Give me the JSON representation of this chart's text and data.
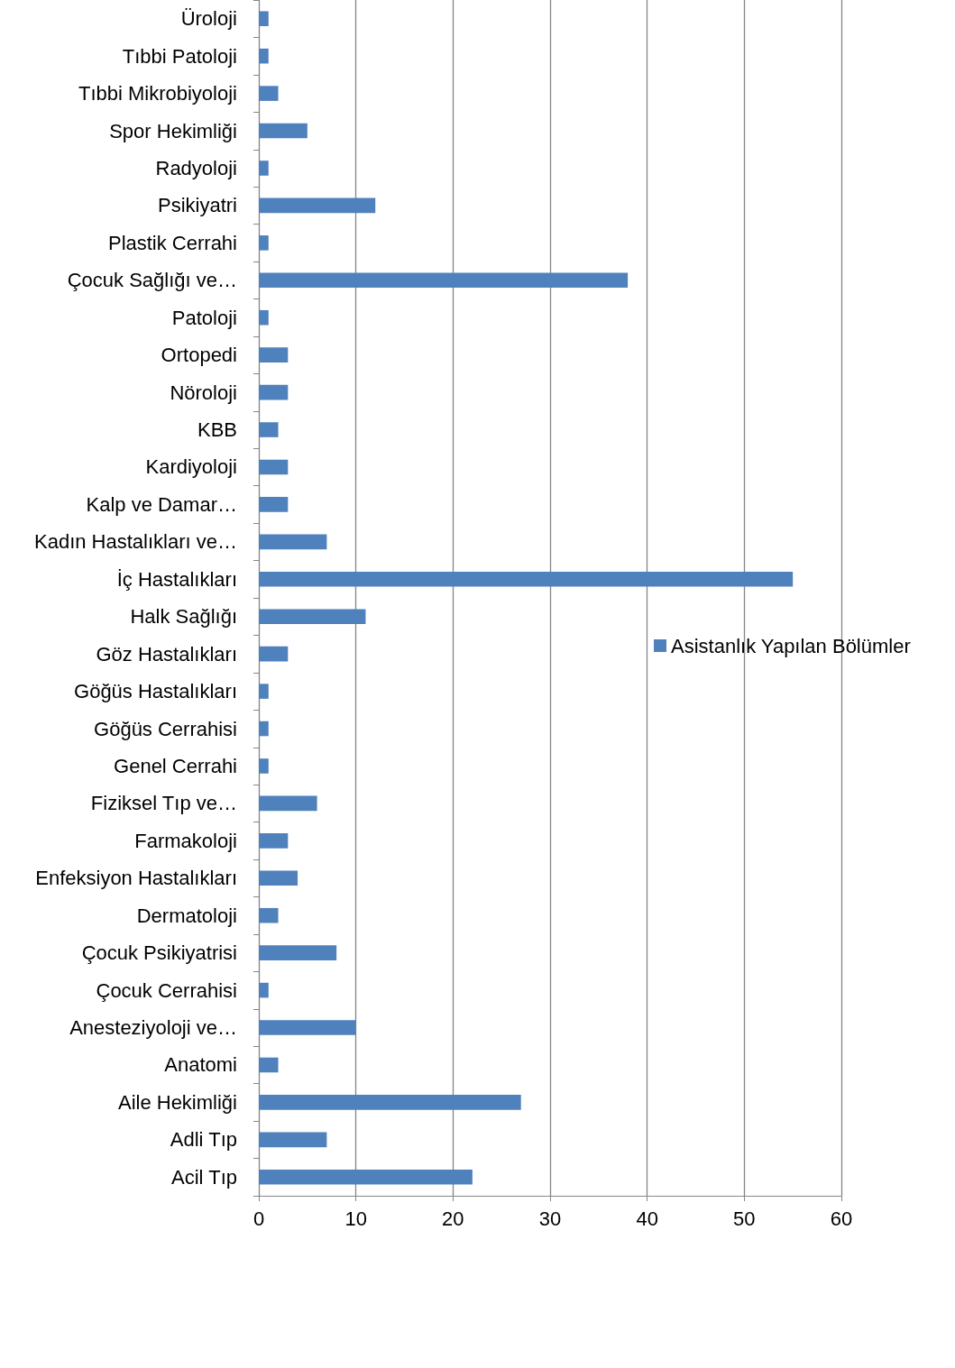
{
  "chart_data": {
    "type": "bar",
    "orientation": "horizontal",
    "categories": [
      "Üroloji",
      "Tıbbi Patoloji",
      "Tıbbi Mikrobiyoloji",
      "Spor Hekimliği",
      "Radyoloji",
      "Psikiyatri",
      "Plastik Cerrahi",
      "Çocuk Sağlığı ve…",
      "Patoloji",
      "Ortopedi",
      "Nöroloji",
      "KBB",
      "Kardiyoloji",
      "Kalp ve Damar…",
      "Kadın Hastalıkları ve…",
      "İç Hastalıkları",
      "Halk Sağlığı",
      "Göz Hastalıkları",
      "Göğüs Hastalıkları",
      "Göğüs Cerrahisi",
      "Genel Cerrahi",
      "Fiziksel Tıp ve…",
      "Farmakoloji",
      "Enfeksiyon Hastalıkları",
      "Dermatoloji",
      "Çocuk Psikiyatrisi",
      "Çocuk Cerrahisi",
      "Anesteziyoloji ve…",
      "Anatomi",
      "Aile Hekimliği",
      "Adli Tıp",
      "Acil Tıp"
    ],
    "series": [
      {
        "name": "Asistanlık Yapılan Bölümler",
        "color": "#4f81bd",
        "values": [
          1,
          1,
          2,
          5,
          1,
          12,
          1,
          38,
          1,
          3,
          3,
          2,
          3,
          3,
          7,
          55,
          11,
          3,
          1,
          1,
          1,
          6,
          3,
          4,
          2,
          8,
          1,
          10,
          2,
          27,
          7,
          22
        ]
      }
    ],
    "xlim": [
      0,
      60
    ],
    "xticks": [
      0,
      10,
      20,
      30,
      40,
      50,
      60
    ],
    "grid": "x",
    "legend": "right"
  }
}
